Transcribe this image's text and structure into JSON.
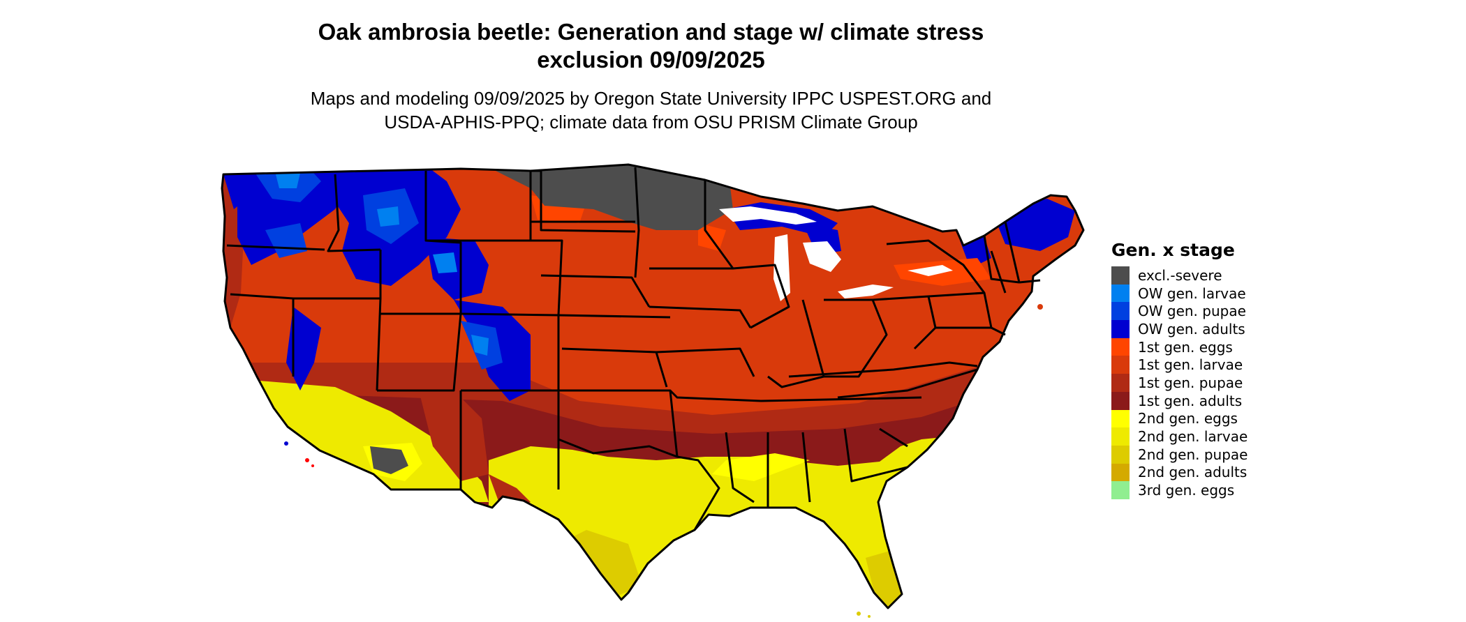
{
  "map": {
    "title_line1": "Oak ambrosia beetle: Generation and stage w/ climate stress",
    "title_line2": "exclusion 09/09/2025",
    "subtitle_line1": "Maps and modeling 09/09/2025 by Oregon State University IPPC USPEST.ORG and",
    "subtitle_line2": "USDA-APHIS-PPQ; climate data from OSU PRISM Climate Group"
  },
  "legend": {
    "title": "Gen. x stage",
    "items": [
      {
        "label": "excl.-severe",
        "color": "#4d4d4d"
      },
      {
        "label": "OW gen. larvae",
        "color": "#0080f0"
      },
      {
        "label": "OW gen. pupae",
        "color": "#0040e0"
      },
      {
        "label": "OW gen. adults",
        "color": "#0000d0"
      },
      {
        "label": "1st gen. eggs",
        "color": "#ff4500"
      },
      {
        "label": "1st gen. larvae",
        "color": "#d93a0b"
      },
      {
        "label": "1st gen. pupae",
        "color": "#b02a14"
      },
      {
        "label": "1st gen. adults",
        "color": "#8b1a1a"
      },
      {
        "label": "2nd gen. eggs",
        "color": "#ffff00"
      },
      {
        "label": "2nd gen. larvae",
        "color": "#eeea00"
      },
      {
        "label": "2nd gen. pupae",
        "color": "#ddcc00"
      },
      {
        "label": "2nd gen. adults",
        "color": "#d4aa00"
      },
      {
        "label": "3rd gen. eggs",
        "color": "#90ee90"
      }
    ]
  }
}
